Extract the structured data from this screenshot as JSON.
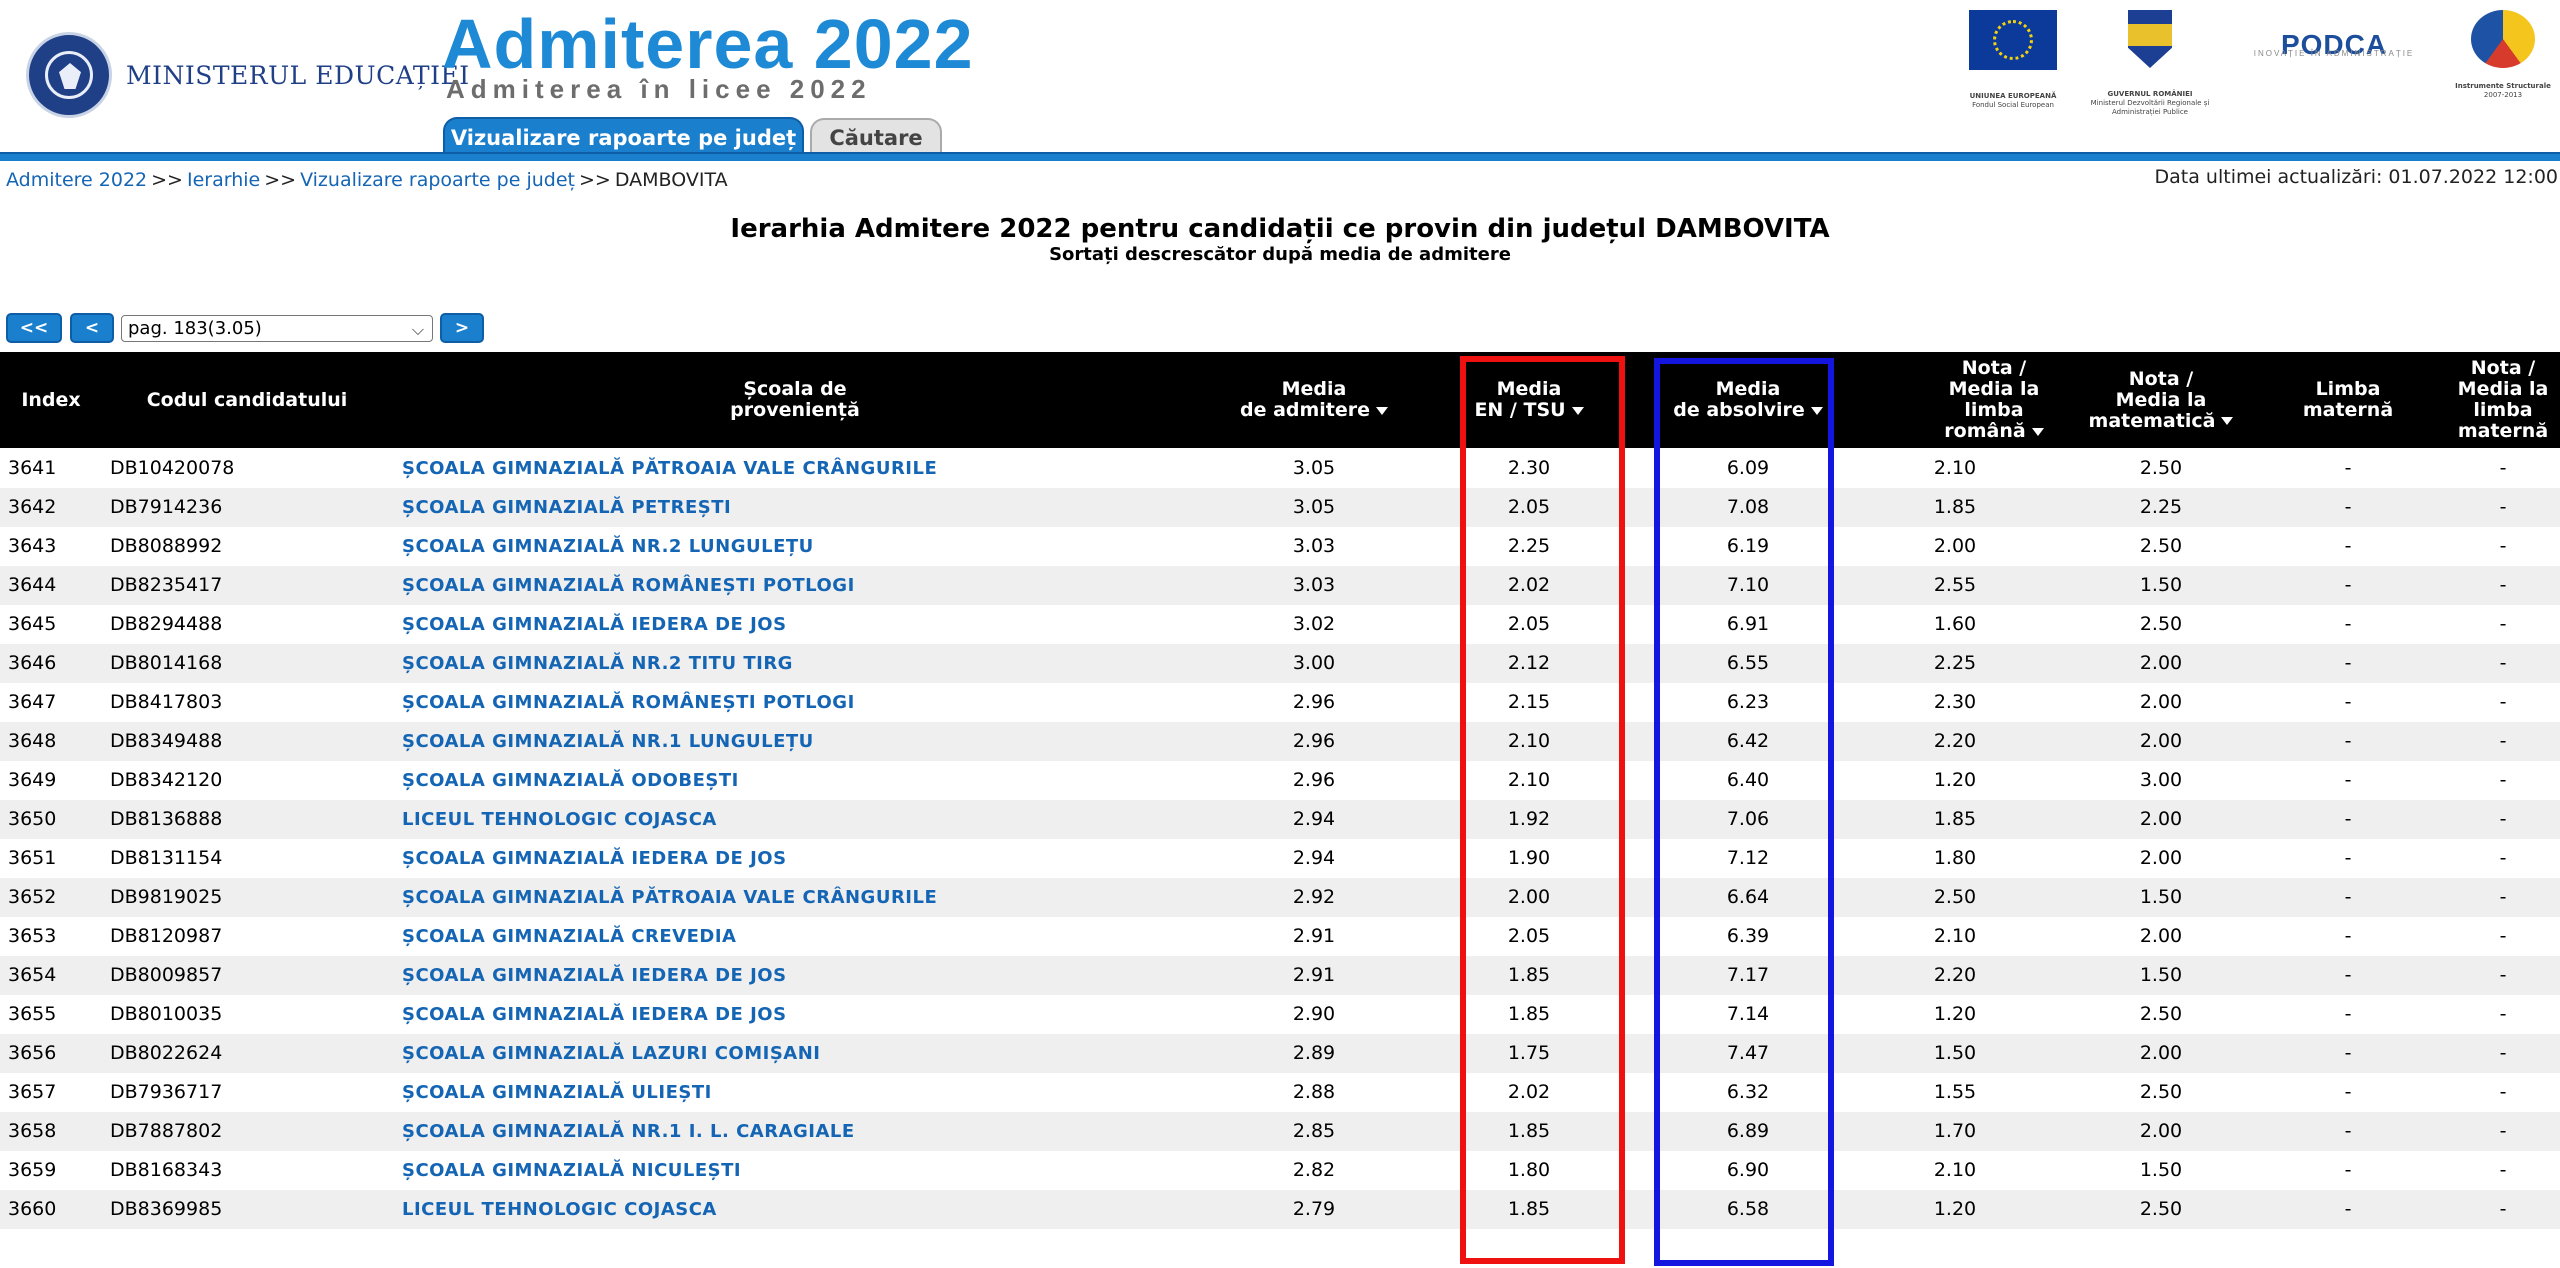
{
  "header": {
    "ministry_name": "MINISTERUL EDUCAȚIEI",
    "seal_text": "GUVERNUL ROMÂNIEI",
    "app_title": "Admiterea 2022",
    "app_subtitle": "Admiterea în licee 2022",
    "tabs": [
      {
        "label": "Vizualizare rapoarte pe județ",
        "active": true
      },
      {
        "label": "Căutare",
        "active": false
      }
    ],
    "partners": [
      {
        "name": "UNIUNEA EUROPEANĂ",
        "caption": "Fondul Social European",
        "icon": "eu-flag-icon"
      },
      {
        "name": "GUVERNUL ROMÂNIEI",
        "caption": "Ministerul Dezvoltării Regionale și Administrației Publice",
        "icon": "coat-of-arms-icon"
      },
      {
        "name": "PODCA",
        "caption": "INOVAȚIE ÎN ADMINISTRAȚIE",
        "icon": "podca-logo-icon"
      },
      {
        "name": "Instrumente Structurale",
        "caption": "2007-2013",
        "icon": "instrumente-structurale-icon"
      }
    ],
    "accent_color": "#1a7fcc"
  },
  "breadcrumb": {
    "items": [
      "Admitere 2022",
      "Ierarhie",
      "Vizualizare rapoarte pe județ"
    ],
    "current": "DAMBOVITA",
    "separator": ">>"
  },
  "last_update": "Data ultimei actualizări: 01.07.2022 12:00",
  "title": "Ierarhia Admitere 2022 pentru candidații ce provin din județul DAMBOVITA",
  "subtitle": "Sortați descrescător după media de admitere",
  "pager": {
    "first": "<<",
    "prev": "<",
    "next": ">",
    "selected_page": "pag. 183(3.05)"
  },
  "columns": {
    "index": "Index",
    "code": "Codul candidatului",
    "school_l1": "Școala de",
    "school_l2": "proveniență",
    "adm_l1": "Media",
    "adm_l2": "de admitere",
    "en_l1": "Media",
    "en_l2": "EN / TSU",
    "abs_l1": "Media",
    "abs_l2": "de absolvire",
    "ro_l1": "Nota /",
    "ro_l2": "Media la",
    "ro_l3": "limba",
    "ro_l4": "română",
    "mat_l1": "Nota /",
    "mat_l2": "Media la",
    "mat_l3": "matematică",
    "lm_l1": "Limba",
    "lm_l2": "maternă",
    "nlm_l1": "Nota /",
    "nlm_l2": "Media la",
    "nlm_l3": "limba",
    "nlm_l4": "maternă"
  },
  "rows": [
    {
      "index": "3641",
      "code": "DB10420078",
      "school": "ȘCOALA GIMNAZIALĂ PĂTROAIA VALE CRÂNGURILE",
      "adm": "3.05",
      "en": "2.30",
      "abs": "6.09",
      "ro": "2.10",
      "mat": "2.50",
      "lm": "-",
      "nlm": "-"
    },
    {
      "index": "3642",
      "code": "DB7914236",
      "school": "ȘCOALA GIMNAZIALĂ PETREȘTI",
      "adm": "3.05",
      "en": "2.05",
      "abs": "7.08",
      "ro": "1.85",
      "mat": "2.25",
      "lm": "-",
      "nlm": "-"
    },
    {
      "index": "3643",
      "code": "DB8088992",
      "school": "ȘCOALA GIMNAZIALĂ NR.2 LUNGULEȚU",
      "adm": "3.03",
      "en": "2.25",
      "abs": "6.19",
      "ro": "2.00",
      "mat": "2.50",
      "lm": "-",
      "nlm": "-"
    },
    {
      "index": "3644",
      "code": "DB8235417",
      "school": "ȘCOALA GIMNAZIALĂ ROMÂNEȘTI POTLOGI",
      "adm": "3.03",
      "en": "2.02",
      "abs": "7.10",
      "ro": "2.55",
      "mat": "1.50",
      "lm": "-",
      "nlm": "-"
    },
    {
      "index": "3645",
      "code": "DB8294488",
      "school": "ȘCOALA GIMNAZIALĂ IEDERA DE JOS",
      "adm": "3.02",
      "en": "2.05",
      "abs": "6.91",
      "ro": "1.60",
      "mat": "2.50",
      "lm": "-",
      "nlm": "-"
    },
    {
      "index": "3646",
      "code": "DB8014168",
      "school": "ȘCOALA GIMNAZIALĂ NR.2 TITU TIRG",
      "adm": "3.00",
      "en": "2.12",
      "abs": "6.55",
      "ro": "2.25",
      "mat": "2.00",
      "lm": "-",
      "nlm": "-"
    },
    {
      "index": "3647",
      "code": "DB8417803",
      "school": "ȘCOALA GIMNAZIALĂ ROMÂNEȘTI POTLOGI",
      "adm": "2.96",
      "en": "2.15",
      "abs": "6.23",
      "ro": "2.30",
      "mat": "2.00",
      "lm": "-",
      "nlm": "-"
    },
    {
      "index": "3648",
      "code": "DB8349488",
      "school": "ȘCOALA GIMNAZIALĂ NR.1 LUNGULEȚU",
      "adm": "2.96",
      "en": "2.10",
      "abs": "6.42",
      "ro": "2.20",
      "mat": "2.00",
      "lm": "-",
      "nlm": "-"
    },
    {
      "index": "3649",
      "code": "DB8342120",
      "school": "ȘCOALA GIMNAZIALĂ ODOBEȘTI",
      "adm": "2.96",
      "en": "2.10",
      "abs": "6.40",
      "ro": "1.20",
      "mat": "3.00",
      "lm": "-",
      "nlm": "-"
    },
    {
      "index": "3650",
      "code": "DB8136888",
      "school": "LICEUL TEHNOLOGIC COJASCA",
      "adm": "2.94",
      "en": "1.92",
      "abs": "7.06",
      "ro": "1.85",
      "mat": "2.00",
      "lm": "-",
      "nlm": "-"
    },
    {
      "index": "3651",
      "code": "DB8131154",
      "school": "ȘCOALA GIMNAZIALĂ IEDERA DE JOS",
      "adm": "2.94",
      "en": "1.90",
      "abs": "7.12",
      "ro": "1.80",
      "mat": "2.00",
      "lm": "-",
      "nlm": "-"
    },
    {
      "index": "3652",
      "code": "DB9819025",
      "school": "ȘCOALA GIMNAZIALĂ PĂTROAIA VALE CRÂNGURILE",
      "adm": "2.92",
      "en": "2.00",
      "abs": "6.64",
      "ro": "2.50",
      "mat": "1.50",
      "lm": "-",
      "nlm": "-"
    },
    {
      "index": "3653",
      "code": "DB8120987",
      "school": "ȘCOALA GIMNAZIALĂ CREVEDIA",
      "adm": "2.91",
      "en": "2.05",
      "abs": "6.39",
      "ro": "2.10",
      "mat": "2.00",
      "lm": "-",
      "nlm": "-"
    },
    {
      "index": "3654",
      "code": "DB8009857",
      "school": "ȘCOALA GIMNAZIALĂ IEDERA DE JOS",
      "adm": "2.91",
      "en": "1.85",
      "abs": "7.17",
      "ro": "2.20",
      "mat": "1.50",
      "lm": "-",
      "nlm": "-"
    },
    {
      "index": "3655",
      "code": "DB8010035",
      "school": "ȘCOALA GIMNAZIALĂ IEDERA DE JOS",
      "adm": "2.90",
      "en": "1.85",
      "abs": "7.14",
      "ro": "1.20",
      "mat": "2.50",
      "lm": "-",
      "nlm": "-"
    },
    {
      "index": "3656",
      "code": "DB8022624",
      "school": "ȘCOALA GIMNAZIALĂ LAZURI COMIȘANI",
      "adm": "2.89",
      "en": "1.75",
      "abs": "7.47",
      "ro": "1.50",
      "mat": "2.00",
      "lm": "-",
      "nlm": "-"
    },
    {
      "index": "3657",
      "code": "DB7936717",
      "school": "ȘCOALA GIMNAZIALĂ ULIEȘTI",
      "adm": "2.88",
      "en": "2.02",
      "abs": "6.32",
      "ro": "1.55",
      "mat": "2.50",
      "lm": "-",
      "nlm": "-"
    },
    {
      "index": "3658",
      "code": "DB7887802",
      "school": "ȘCOALA GIMNAZIALĂ NR.1 I. L. CARAGIALE",
      "adm": "2.85",
      "en": "1.85",
      "abs": "6.89",
      "ro": "1.70",
      "mat": "2.00",
      "lm": "-",
      "nlm": "-"
    },
    {
      "index": "3659",
      "code": "DB8168343",
      "school": "ȘCOALA GIMNAZIALĂ NICULEȘTI",
      "adm": "2.82",
      "en": "1.80",
      "abs": "6.90",
      "ro": "2.10",
      "mat": "1.50",
      "lm": "-",
      "nlm": "-"
    },
    {
      "index": "3660",
      "code": "DB8369985",
      "school": "LICEUL TEHNOLOGIC COJASCA",
      "adm": "2.79",
      "en": "1.85",
      "abs": "6.58",
      "ro": "1.20",
      "mat": "2.50",
      "lm": "-",
      "nlm": "-"
    }
  ],
  "highlights": {
    "red_column": "Media EN / TSU",
    "blue_column": "Media de absolvire",
    "red_color": "#ef1010",
    "blue_color": "#1515e0"
  }
}
